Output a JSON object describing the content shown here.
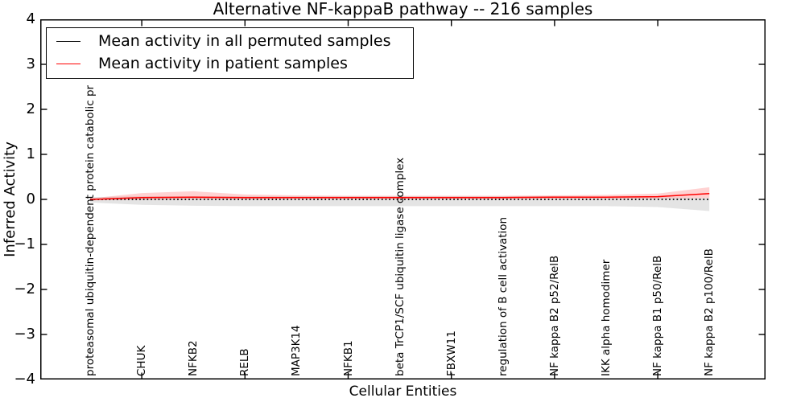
{
  "title": "Alternative NF-kappaB pathway -- 216 samples",
  "xlabel": "Cellular Entities",
  "ylabel": "Inferred Activity",
  "legend": [
    {
      "label": "Mean activity in all permuted samples",
      "color": "#000000"
    },
    {
      "label": "Mean activity in patient samples",
      "color": "#ff0000"
    }
  ],
  "chart_data": {
    "type": "line",
    "title": "Alternative NF-kappaB pathway -- 216 samples",
    "xlabel": "Cellular Entities",
    "ylabel": "Inferred Activity",
    "ylim": [
      -4,
      4
    ],
    "grid": false,
    "legend_position": "upper-left",
    "categories": [
      "proteasomal ubiquitin-dependent protein catabolic pr",
      "CHUK",
      "NFKB2",
      "RELB",
      "MAP3K14",
      "NFKB1",
      "beta TrCP1/SCF ubiquitin ligase complex",
      "FBXW11",
      "regulation of B cell activation",
      "NF kappa B2 p52/RelB",
      "IKK alpha homodimer",
      "NF kappa B1 p50/RelB",
      "NF kappa B2 p100/RelB"
    ],
    "series": [
      {
        "name": "Mean activity in all permuted samples",
        "color": "#000000",
        "style": "dotted",
        "values": [
          0,
          0,
          0,
          0,
          0,
          0,
          0,
          0,
          0,
          0,
          0,
          0,
          0
        ]
      },
      {
        "name": "Mean activity in patient samples",
        "color": "#ff0000",
        "style": "solid",
        "values": [
          0.0,
          0.04,
          0.05,
          0.04,
          0.04,
          0.04,
          0.04,
          0.04,
          0.04,
          0.05,
          0.05,
          0.06,
          0.13
        ]
      }
    ],
    "bands": [
      {
        "name": "permuted-std-band",
        "color": "#aaaaaa",
        "opacity": 0.32,
        "upper": [
          0.05,
          0.07,
          0.07,
          0.07,
          0.07,
          0.07,
          0.07,
          0.07,
          0.07,
          0.07,
          0.06,
          0.05,
          0.03
        ],
        "lower": [
          -0.07,
          -0.12,
          -0.14,
          -0.15,
          -0.15,
          -0.15,
          -0.15,
          -0.15,
          -0.15,
          -0.15,
          -0.15,
          -0.17,
          -0.26
        ]
      },
      {
        "name": "patient-std-band",
        "color": "#ff3333",
        "opacity": 0.22,
        "upper": [
          0.02,
          0.14,
          0.18,
          0.11,
          0.09,
          0.08,
          0.08,
          0.08,
          0.08,
          0.09,
          0.1,
          0.13,
          0.27
        ],
        "lower": [
          -0.02,
          -0.01,
          0.0,
          0.0,
          0.01,
          0.01,
          0.01,
          0.01,
          0.01,
          0.01,
          0.01,
          0.02,
          0.03
        ]
      }
    ],
    "yticks": [
      {
        "value": 4,
        "label": "4"
      },
      {
        "value": 3,
        "label": "3"
      },
      {
        "value": 2,
        "label": "2"
      },
      {
        "value": 1,
        "label": "1"
      },
      {
        "value": 0,
        "label": "0"
      },
      {
        "value": -1,
        "label": "−1"
      },
      {
        "value": -2,
        "label": "−2"
      },
      {
        "value": -3,
        "label": "−3"
      },
      {
        "value": -4,
        "label": "−4"
      }
    ],
    "xtick_indices": [
      1,
      3,
      5,
      7,
      9,
      11
    ]
  }
}
